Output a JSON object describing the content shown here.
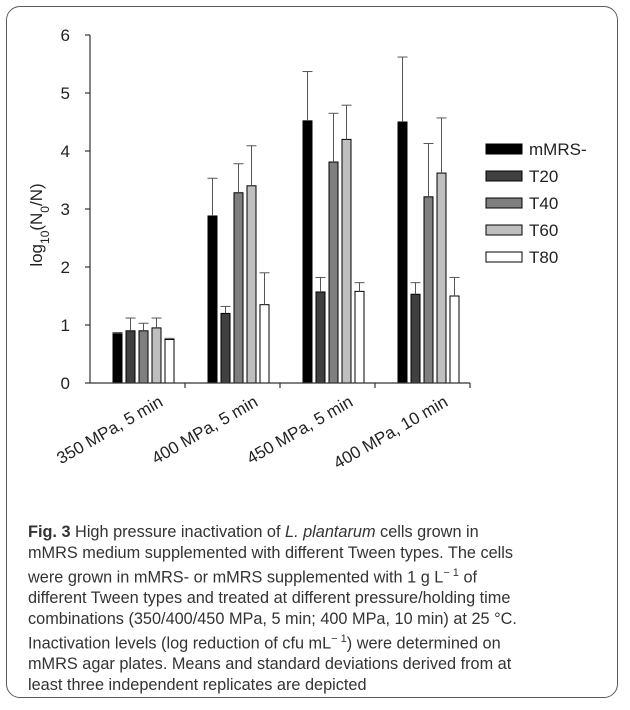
{
  "chart_data": {
    "type": "bar",
    "categories": [
      "350 MPa, 5 min",
      "400 MPa, 5 min",
      "450 MPa, 5 min",
      "400 MPa, 10 min"
    ],
    "series": [
      {
        "name": "mMRS-",
        "values": [
          0.85,
          2.88,
          4.52,
          4.5
        ],
        "errors": [
          0.02,
          0.65,
          0.85,
          1.12
        ],
        "color": "#000000"
      },
      {
        "name": "T20",
        "values": [
          0.9,
          1.2,
          1.57,
          1.53
        ],
        "errors": [
          0.22,
          0.12,
          0.25,
          0.2
        ],
        "color": "#404040"
      },
      {
        "name": "T40",
        "values": [
          0.9,
          3.28,
          3.81,
          3.21
        ],
        "errors": [
          0.13,
          0.5,
          0.84,
          0.92
        ],
        "color": "#7f7f7f"
      },
      {
        "name": "T60",
        "values": [
          0.95,
          3.4,
          4.2,
          3.62
        ],
        "errors": [
          0.17,
          0.69,
          0.59,
          0.95
        ],
        "color": "#bfbfbf"
      },
      {
        "name": "T80",
        "values": [
          0.75,
          1.35,
          1.58,
          1.5
        ],
        "errors": [
          0.02,
          0.55,
          0.15,
          0.32
        ],
        "color": "#ffffff"
      }
    ],
    "ylabel_parts": {
      "pre": "log",
      "sub1": "10",
      "mid": "(N",
      "sub2": "0",
      "post": "/N)"
    },
    "ylim": [
      0,
      6
    ],
    "yticks": [
      "0",
      "1",
      "2",
      "3",
      "4",
      "5",
      "6"
    ],
    "legend_position": "right"
  },
  "caption": {
    "fig_label": "Fig. 3",
    "line1_pre": " High pressure inactivation of ",
    "species": "L. plantarum",
    "line1_post": " cells grown in",
    "line2": "mMRS medium supplemented with different Tween types. The cells",
    "line3_pre": "were grown in mMRS- or mMRS supplemented with 1 g L",
    "line3_sup": "− 1",
    "line3_post": " of",
    "line4": "different Tween types and treated at different pressure/holding time",
    "line5": "combinations (350/400/450 MPa, 5 min; 400 MPa, 10 min) at 25 °C.",
    "line6_pre": "Inactivation levels (log reduction of cfu mL",
    "line6_sup": "− 1",
    "line6_post": ") were determined on",
    "line7": "mMRS agar plates. Means and standard deviations derived from at",
    "line8": "least three independent replicates are depicted"
  }
}
